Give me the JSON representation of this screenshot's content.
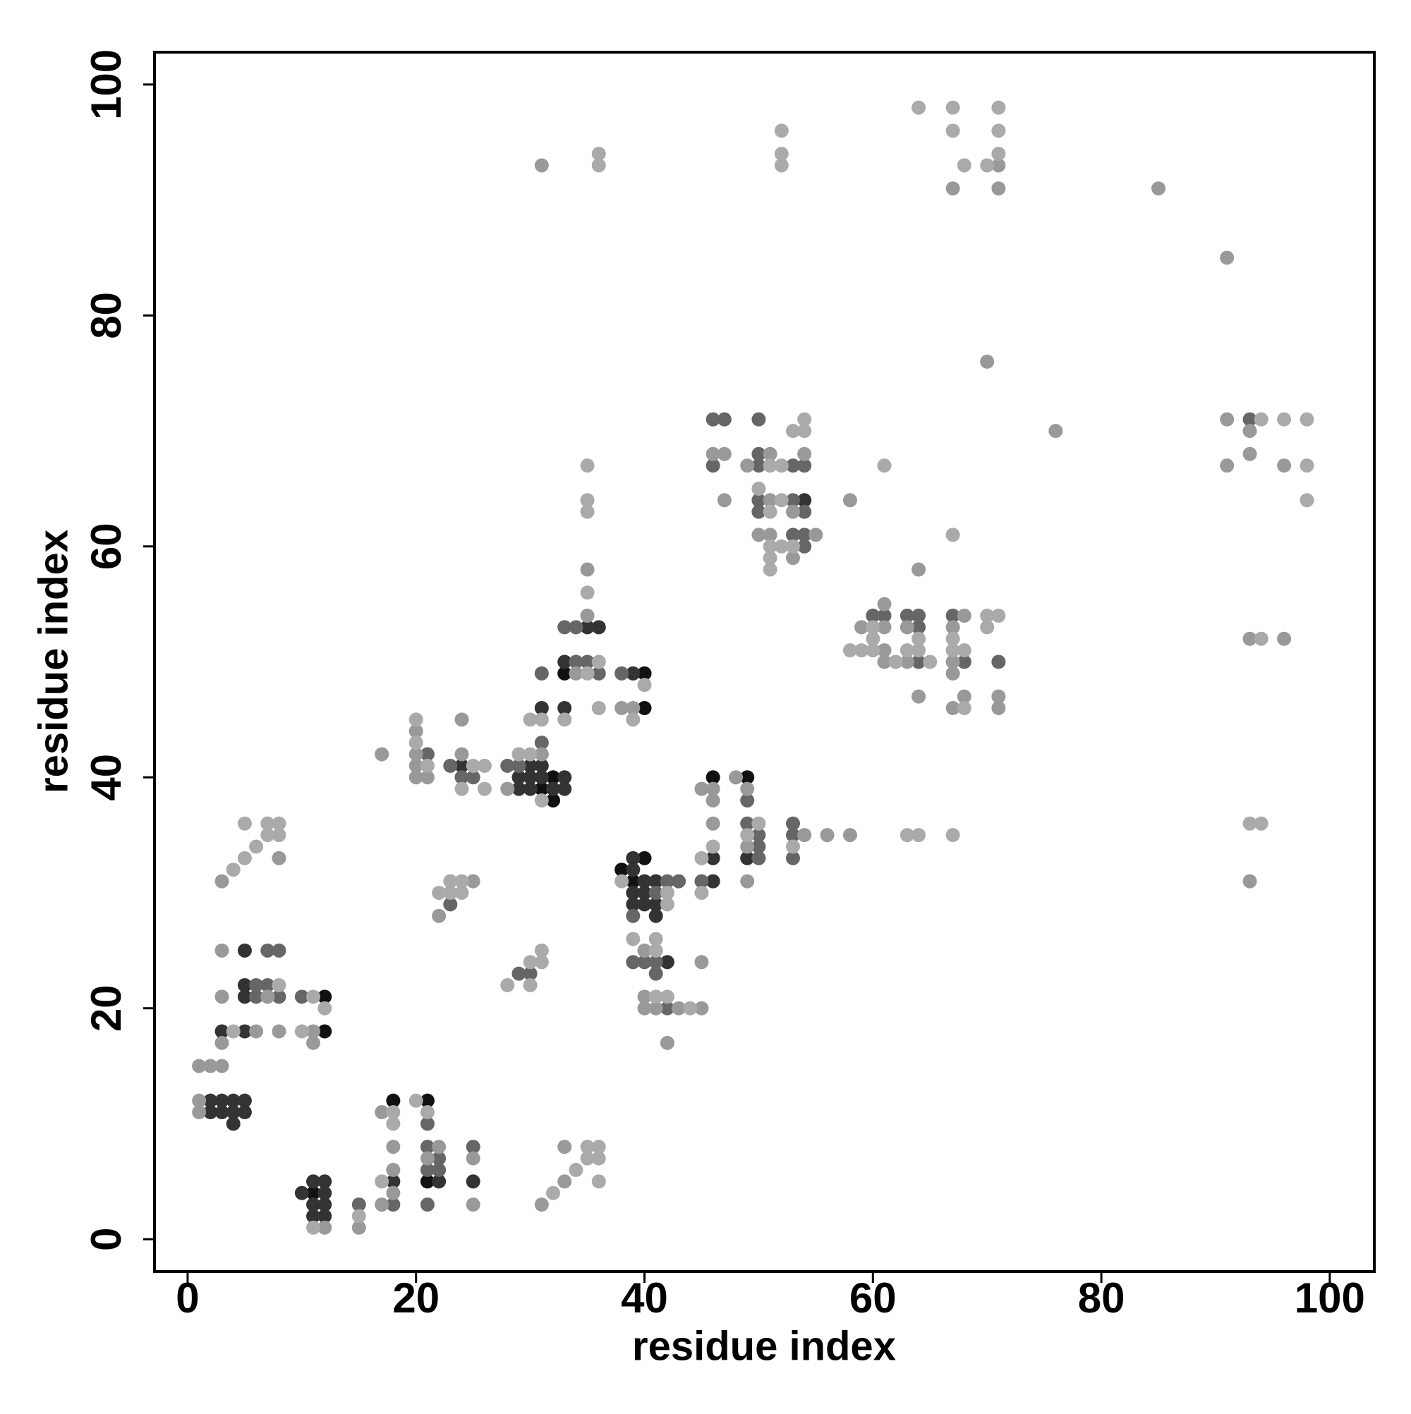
{
  "chart_data": {
    "type": "scatter",
    "xlabel": "residue index",
    "ylabel": "residue index",
    "xlim": [
      -2.9,
      103.9
    ],
    "ylim": [
      -2.8,
      102.8
    ],
    "xticks": [
      0,
      20,
      40,
      60,
      80,
      100
    ],
    "yticks": [
      0,
      20,
      40,
      60,
      80,
      100
    ],
    "grid": false,
    "series": [
      {
        "color": "#111111",
        "x": [
          12,
          12,
          11,
          18,
          21,
          21,
          31,
          32,
          32,
          33,
          40,
          40,
          38,
          39,
          40,
          46,
          49
        ],
        "y": [
          18,
          21,
          4,
          12,
          12,
          5,
          39,
          40,
          38,
          49,
          49,
          46,
          32,
          31,
          33,
          40,
          40
        ]
      },
      {
        "color": "#333333",
        "x": [
          2,
          3,
          4,
          5,
          2,
          3,
          4,
          5,
          4,
          3,
          5,
          5,
          5,
          5,
          10,
          11,
          11,
          11,
          12,
          12,
          12,
          12,
          18,
          22,
          25,
          24,
          29,
          29,
          30,
          30,
          30,
          31,
          31,
          31,
          32,
          33,
          33,
          33,
          33,
          35,
          36,
          39,
          39,
          39,
          39,
          39,
          40,
          40,
          40,
          41,
          41,
          41,
          42,
          46,
          46,
          49,
          54
        ],
        "y": [
          12,
          12,
          12,
          12,
          11,
          11,
          11,
          11,
          10,
          18,
          18,
          21,
          22,
          25,
          4,
          5,
          3,
          2,
          5,
          4,
          3,
          2,
          5,
          5,
          5,
          41,
          40,
          39,
          41,
          40,
          39,
          41,
          40,
          46,
          39,
          40,
          39,
          46,
          50,
          53,
          53,
          49,
          33,
          32,
          30,
          29,
          31,
          30,
          29,
          31,
          29,
          28,
          24,
          33,
          31,
          33,
          64
        ]
      },
      {
        "color": "#666666",
        "x": [
          6,
          7,
          6,
          8,
          10,
          7,
          8,
          15,
          18,
          21,
          21,
          21,
          21,
          22,
          22,
          25,
          23,
          21,
          23,
          24,
          25,
          29,
          30,
          28,
          29,
          31,
          31,
          33,
          34,
          34,
          35,
          36,
          38,
          39,
          39,
          40,
          41,
          41,
          41,
          42,
          42,
          43,
          45,
          46,
          46,
          47,
          49,
          49,
          50,
          50,
          50,
          50,
          50,
          50,
          50,
          50,
          53,
          53,
          53,
          53,
          53,
          53,
          54,
          54,
          54,
          54,
          60,
          61,
          63,
          64,
          64,
          64,
          67,
          68,
          71,
          93
        ],
        "y": [
          22,
          22,
          21,
          21,
          21,
          25,
          25,
          3,
          3,
          10,
          8,
          6,
          3,
          7,
          6,
          8,
          29,
          42,
          41,
          40,
          40,
          23,
          23,
          41,
          41,
          43,
          49,
          53,
          50,
          53,
          50,
          49,
          49,
          28,
          24,
          24,
          30,
          24,
          23,
          31,
          20,
          31,
          31,
          71,
          67,
          71,
          38,
          36,
          71,
          68,
          67,
          64,
          63,
          35,
          34,
          33,
          67,
          64,
          61,
          36,
          35,
          33,
          67,
          63,
          61,
          60,
          54,
          54,
          54,
          54,
          53,
          50,
          54,
          50,
          50,
          71
        ]
      },
      {
        "color": "#999999",
        "x": [
          1,
          2,
          3,
          1,
          1,
          3,
          11,
          3,
          6,
          8,
          11,
          7,
          3,
          3,
          8,
          12,
          15,
          17,
          17,
          18,
          18,
          18,
          21,
          22,
          25,
          25,
          31,
          33,
          33,
          17,
          20,
          20,
          20,
          20,
          21,
          24,
          24,
          22,
          25,
          28,
          31,
          34,
          35,
          35,
          38,
          39,
          40,
          40,
          40,
          41,
          42,
          43,
          45,
          45,
          45,
          46,
          46,
          46,
          46,
          47,
          47,
          48,
          49,
          49,
          49,
          49,
          50,
          51,
          51,
          51,
          53,
          53,
          54,
          54,
          55,
          56,
          58,
          58,
          59,
          61,
          61,
          61,
          61,
          63,
          63,
          64,
          64,
          67,
          67,
          67,
          67,
          67,
          68,
          68,
          70,
          71,
          71,
          71,
          71,
          31,
          76,
          85,
          91,
          91,
          91,
          93,
          93,
          93,
          93,
          96,
          96
        ],
        "y": [
          15,
          15,
          15,
          12,
          11,
          17,
          17,
          21,
          18,
          18,
          18,
          21,
          25,
          31,
          33,
          1,
          1,
          11,
          3,
          8,
          6,
          4,
          7,
          8,
          7,
          3,
          3,
          5,
          8,
          42,
          44,
          42,
          41,
          40,
          40,
          45,
          42,
          28,
          31,
          39,
          42,
          49,
          58,
          54,
          46,
          46,
          25,
          21,
          20,
          20,
          17,
          20,
          20,
          24,
          39,
          39,
          38,
          36,
          68,
          68,
          64,
          40,
          39,
          34,
          31,
          67,
          61,
          68,
          64,
          61,
          63,
          59,
          68,
          35,
          61,
          35,
          64,
          35,
          53,
          55,
          53,
          51,
          50,
          53,
          50,
          58,
          47,
          91,
          53,
          50,
          49,
          46,
          54,
          47,
          76,
          93,
          91,
          47,
          46,
          93,
          70,
          91,
          85,
          71,
          67,
          70,
          68,
          52,
          31,
          67,
          52
        ]
      },
      {
        "color": "#aaaaaa",
        "x": [
          4,
          10,
          8,
          11,
          12,
          4,
          5,
          6,
          7,
          8,
          5,
          7,
          8,
          11,
          15,
          17,
          18,
          18,
          20,
          21,
          32,
          34,
          35,
          35,
          36,
          36,
          36,
          20,
          20,
          21,
          24,
          25,
          26,
          26,
          22,
          23,
          23,
          24,
          24,
          28,
          30,
          30,
          31,
          31,
          29,
          30,
          30,
          31,
          31,
          33,
          35,
          35,
          35,
          35,
          35,
          36,
          36,
          39,
          40,
          38,
          39,
          41,
          41,
          41,
          42,
          42,
          42,
          44,
          45,
          45,
          46,
          49,
          50,
          50,
          51,
          51,
          51,
          51,
          51,
          52,
          52,
          52,
          52,
          52,
          52,
          53,
          53,
          53,
          54,
          54,
          58,
          59,
          60,
          60,
          60,
          61,
          62,
          63,
          63,
          64,
          64,
          64,
          64,
          65,
          67,
          67,
          67,
          67,
          67,
          67,
          68,
          68,
          68,
          70,
          70,
          70,
          71,
          71,
          71,
          71,
          36,
          36,
          93,
          94,
          94,
          94,
          96,
          98,
          98,
          98
        ],
        "y": [
          18,
          18,
          22,
          21,
          20,
          32,
          33,
          34,
          35,
          35,
          36,
          36,
          36,
          1,
          2,
          5,
          11,
          10,
          12,
          11,
          4,
          6,
          8,
          7,
          8,
          7,
          5,
          45,
          43,
          41,
          39,
          41,
          41,
          39,
          30,
          30,
          31,
          31,
          30,
          22,
          24,
          22,
          25,
          24,
          42,
          42,
          45,
          38,
          45,
          45,
          67,
          64,
          63,
          56,
          49,
          50,
          46,
          45,
          48,
          31,
          26,
          26,
          25,
          21,
          30,
          29,
          21,
          20,
          30,
          33,
          34,
          35,
          36,
          65,
          67,
          63,
          60,
          59,
          58,
          67,
          64,
          60,
          96,
          94,
          93,
          70,
          60,
          34,
          71,
          70,
          51,
          51,
          53,
          52,
          51,
          67,
          50,
          51,
          35,
          52,
          51,
          35,
          98,
          50,
          98,
          96,
          61,
          52,
          51,
          35,
          93,
          51,
          46,
          93,
          54,
          53,
          98,
          96,
          94,
          54,
          94,
          93,
          36,
          71,
          52,
          36,
          71,
          71,
          67,
          64
        ]
      }
    ]
  }
}
